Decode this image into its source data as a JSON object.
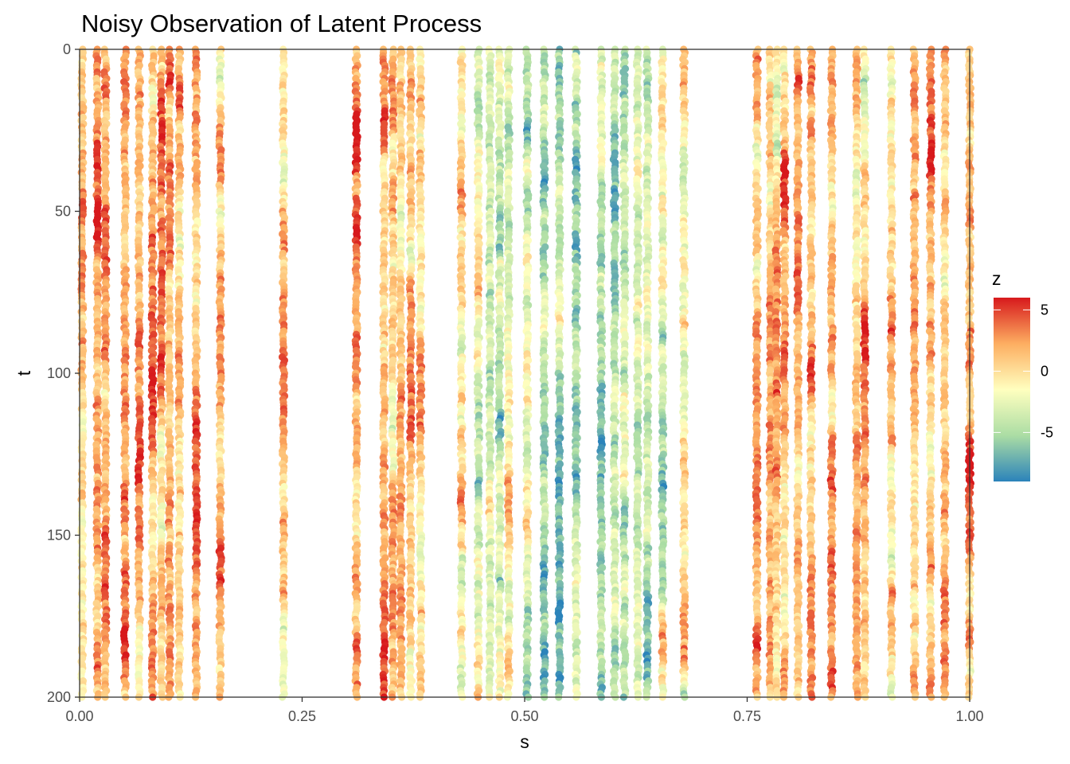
{
  "chart_data": {
    "type": "scatter",
    "title": "Noisy Observation of Latent Process",
    "xlabel": "s",
    "ylabel": "t",
    "xlim": [
      0,
      1
    ],
    "ylim": [
      0,
      200
    ],
    "y_reversed": true,
    "x_ticks": [
      "0.00",
      "0.25",
      "0.50",
      "0.75",
      "1.00"
    ],
    "y_ticks": [
      "0",
      "50",
      "100",
      "150",
      "200"
    ],
    "grid": false,
    "legend": {
      "title": "z",
      "position": "right",
      "ticks": [
        "5",
        "0",
        "-5"
      ],
      "range": [
        -9,
        6
      ],
      "palette": [
        "#d7191c",
        "#fdae61",
        "#ffffbf",
        "#abdda4",
        "#2b83ba"
      ]
    },
    "s_columns": [
      0.003,
      0.02,
      0.029,
      0.051,
      0.067,
      0.082,
      0.092,
      0.101,
      0.112,
      0.131,
      0.158,
      0.229,
      0.311,
      0.342,
      0.352,
      0.361,
      0.372,
      0.383,
      0.429,
      0.448,
      0.461,
      0.472,
      0.482,
      0.503,
      0.522,
      0.539,
      0.558,
      0.586,
      0.601,
      0.612,
      0.627,
      0.638,
      0.655,
      0.679,
      0.761,
      0.776,
      0.783,
      0.792,
      0.807,
      0.822,
      0.845,
      0.873,
      0.882,
      0.912,
      0.938,
      0.956,
      0.972,
      1.0
    ],
    "z_column_means": [
      0.5,
      1.2,
      1.5,
      2.4,
      2.8,
      2.6,
      2.5,
      2.0,
      1.0,
      2.2,
      1.5,
      1.2,
      2.5,
      1.8,
      1.2,
      1.0,
      0.5,
      0.4,
      -1.0,
      -2.5,
      -3.0,
      -3.2,
      -2.5,
      -3.5,
      -4.5,
      -5.5,
      -4.0,
      -4.5,
      -4.2,
      -4.0,
      -3.5,
      -3.0,
      -2.0,
      -1.5,
      1.5,
      1.5,
      1.2,
      1.0,
      1.2,
      1.5,
      1.8,
      1.5,
      1.0,
      0.5,
      1.0,
      1.5,
      1.2,
      1.0
    ]
  }
}
